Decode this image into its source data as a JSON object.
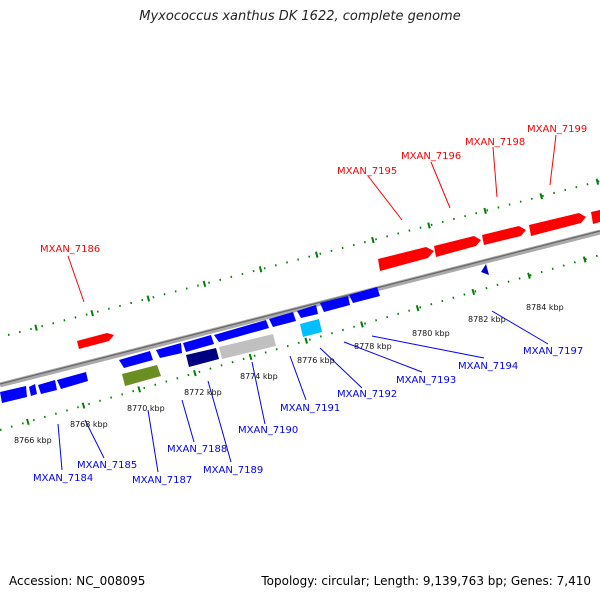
{
  "title": "Myxococcus xanthus DK 1622, complete genome",
  "footer": {
    "accession": "Accession: NC_008095",
    "summary": "Topology: circular; Length: 9,139,763 bp; Genes: 7,410"
  },
  "colors": {
    "forward_gene": "#ff0000",
    "reverse_gene": "#0000ff",
    "backbone": "#888888",
    "ticks": "#008000",
    "olive_feature": "#6b8e23",
    "navy_feature": "#000080",
    "gray_feature": "#c0c0c0",
    "cyan_feature": "#00bfff"
  },
  "ticks": [
    "8766 kbp",
    "8768 kbp",
    "8770 kbp",
    "8772 kbp",
    "8774 kbp",
    "8776 kbp",
    "8778 kbp",
    "8780 kbp",
    "8782 kbp",
    "8784 kbp"
  ],
  "forward_labels": [
    "MXAN_7186",
    "MXAN_7195",
    "MXAN_7196",
    "MXAN_7198",
    "MXAN_7199"
  ],
  "reverse_labels": [
    "MXAN_7184",
    "MXAN_7185",
    "MXAN_7187",
    "MXAN_7188",
    "MXAN_7189",
    "MXAN_7190",
    "MXAN_7191",
    "MXAN_7192",
    "MXAN_7193",
    "MXAN_7194",
    "MXAN_7197"
  ]
}
